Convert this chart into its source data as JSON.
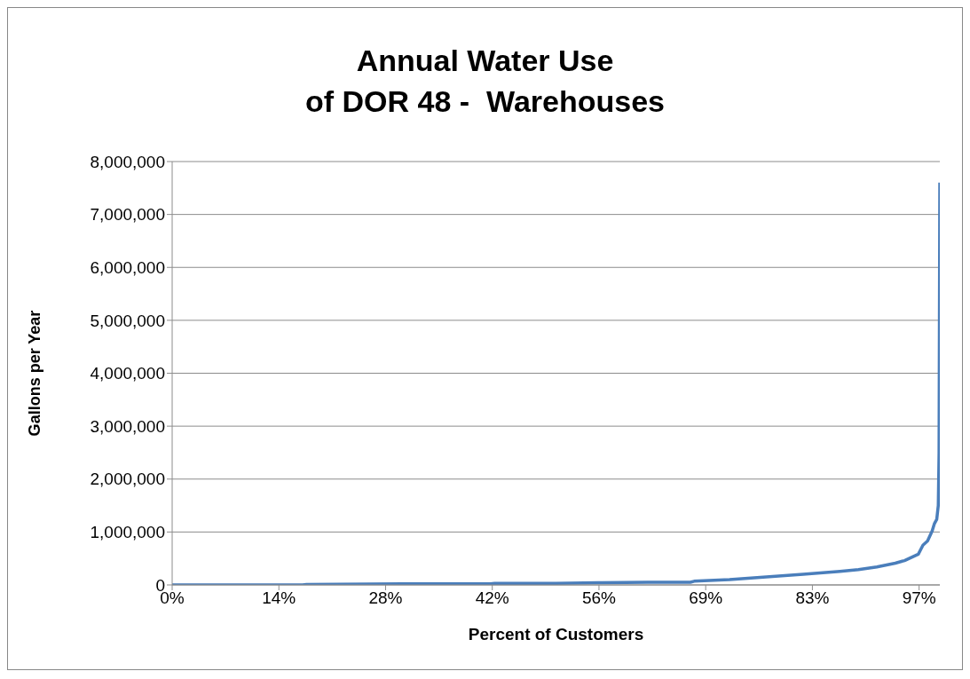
{
  "chart_data": {
    "type": "line",
    "title": "Annual Water Use\nof DOR 48 -  Warehouses",
    "xlabel": "Percent of Customers",
    "ylabel": "Gallons per Year",
    "x": [
      0,
      10,
      17,
      17.5,
      30,
      41.5,
      42,
      50,
      55.5,
      56,
      62,
      67.5,
      68,
      72.6,
      77.4,
      82.2,
      87,
      89.4,
      91.8,
      94.2,
      95.4,
      97.2,
      97.8,
      98.4,
      99,
      99.3,
      99.6,
      99.8,
      99.9,
      100
    ],
    "series": [
      {
        "color": "#4a7ebb",
        "values": [
          0,
          0,
          0,
          10000,
          20000,
          20000,
          30000,
          30000,
          40000,
          40000,
          50000,
          50000,
          70000,
          100000,
          150000,
          200000,
          255000,
          290000,
          340000,
          410000,
          460000,
          580000,
          750000,
          830000,
          1020000,
          1160000,
          1240000,
          1500000,
          2500000,
          7600000
        ]
      }
    ],
    "xlim": [
      0,
      100
    ],
    "xticks": [
      {
        "value": 0,
        "label": "0%"
      },
      {
        "value": 13.9,
        "label": "14%"
      },
      {
        "value": 27.8,
        "label": "28%"
      },
      {
        "value": 41.7,
        "label": "42%"
      },
      {
        "value": 55.6,
        "label": "56%"
      },
      {
        "value": 69.5,
        "label": "69%"
      },
      {
        "value": 83.4,
        "label": "83%"
      },
      {
        "value": 97.3,
        "label": "97%"
      }
    ],
    "ylim": [
      0,
      8000000
    ],
    "yticks": [
      {
        "value": 0,
        "label": "0"
      },
      {
        "value": 1000000,
        "label": "1,000,000"
      },
      {
        "value": 2000000,
        "label": "2,000,000"
      },
      {
        "value": 3000000,
        "label": "3,000,000"
      },
      {
        "value": 4000000,
        "label": "4,000,000"
      },
      {
        "value": 5000000,
        "label": "5,000,000"
      },
      {
        "value": 6000000,
        "label": "6,000,000"
      },
      {
        "value": 7000000,
        "label": "7,000,000"
      },
      {
        "value": 8000000,
        "label": "8,000,000"
      }
    ],
    "grid": "y",
    "legend": false,
    "marker": "none",
    "line_style": "solid"
  }
}
